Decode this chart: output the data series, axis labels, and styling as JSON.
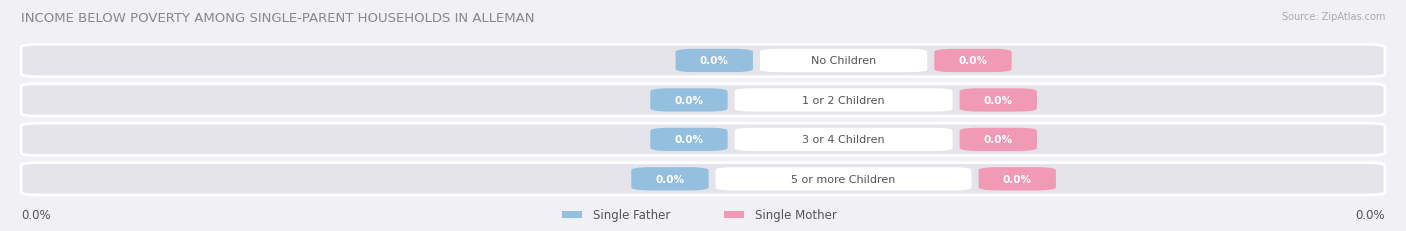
{
  "title": "INCOME BELOW POVERTY AMONG SINGLE-PARENT HOUSEHOLDS IN ALLEMAN",
  "source": "Source: ZipAtlas.com",
  "categories": [
    "No Children",
    "1 or 2 Children",
    "3 or 4 Children",
    "5 or more Children"
  ],
  "single_father_values": [
    "0.0%",
    "0.0%",
    "0.0%",
    "0.0%"
  ],
  "single_mother_values": [
    "0.0%",
    "0.0%",
    "0.0%",
    "0.0%"
  ],
  "father_color": "#94bfde",
  "mother_color": "#f09ab5",
  "bar_bg_color": "#e4e4ea",
  "background_color": "#f0f0f5",
  "left_axis_label": "0.0%",
  "right_axis_label": "0.0%",
  "legend_father": "Single Father",
  "legend_mother": "Single Mother",
  "title_color": "#888888",
  "source_color": "#aaaaaa",
  "label_color": "#555555"
}
